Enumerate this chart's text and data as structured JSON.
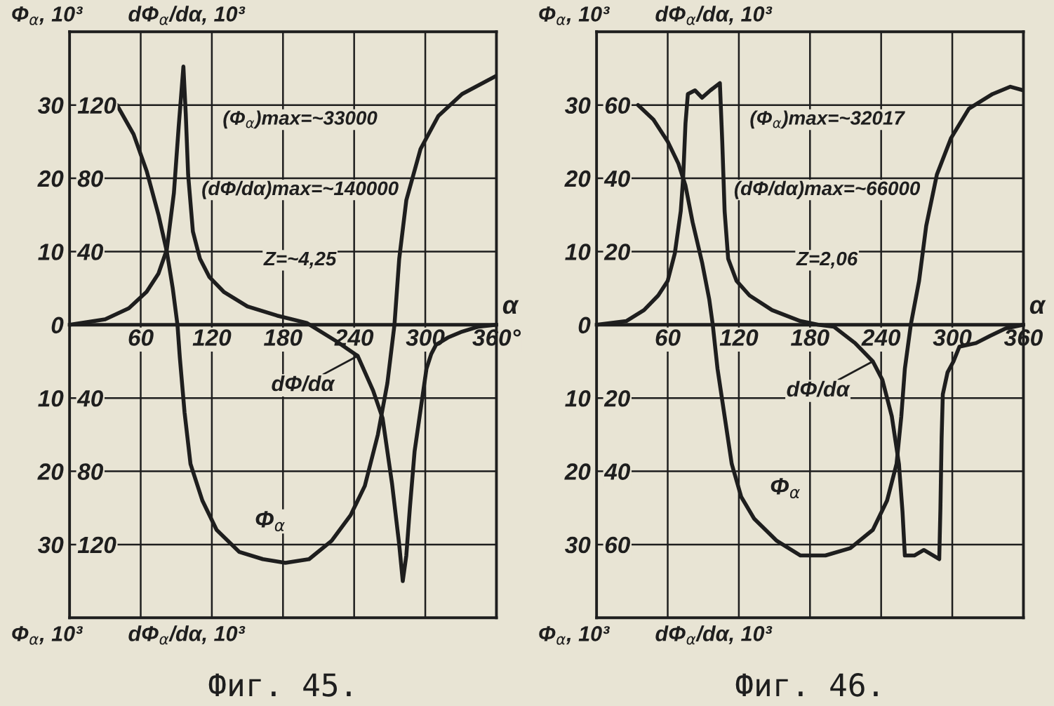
{
  "chart_data": [
    {
      "type": "line",
      "title": "Фиг. 45.",
      "xlabel": "α",
      "ylabel": "Φ$_{α}$, 10³",
      "y2label": "dΦ$_{α}$/dα, 10³",
      "annotations": [
        "(Φ$_{α}$)max=~33000",
        "(dΦ/dα)max=~140000",
        "Z=~4,25"
      ],
      "xlim": [
        0,
        360
      ],
      "xticks": [
        60,
        120,
        180,
        240,
        300,
        {
          "value": 360,
          "label": "360°"
        }
      ],
      "ylim": [
        -40,
        40
      ],
      "yticks": [
        {
          "value": -30,
          "label": "30"
        },
        {
          "value": -20,
          "label": "20"
        },
        {
          "value": -10,
          "label": "10"
        },
        0,
        10,
        20,
        30
      ],
      "y2lim": [
        -160,
        160
      ],
      "y2ticks": [
        {
          "value": -120,
          "label": "120"
        },
        {
          "value": -80,
          "label": "80"
        },
        {
          "value": -40,
          "label": "40"
        },
        40,
        80,
        120
      ],
      "grid": true,
      "series": [
        {
          "name": "Φ$_{α}$",
          "color": "#1e1e1e",
          "x": [
            40,
            54,
            65,
            75,
            82,
            87,
            91,
            93,
            97,
            102,
            112,
            124,
            143,
            163,
            182,
            202,
            221,
            237,
            249,
            260,
            268,
            274,
            278,
            284,
            296,
            311,
            331,
            360
          ],
          "values": [
            30,
            26,
            21,
            15,
            10,
            5,
            0,
            -4.5,
            -12,
            -19,
            -24,
            -28,
            -31,
            -32,
            -32.5,
            -32,
            -29.5,
            -26,
            -22,
            -15,
            -8,
            0,
            9,
            17,
            24,
            28.5,
            31.5,
            34
          ]
        },
        {
          "name": "dΦ/dα",
          "color": "#1e1e1e",
          "axis": "y2",
          "x": [
            0,
            30,
            50,
            65,
            75,
            82,
            88,
            92,
            96,
            98,
            100,
            104,
            110,
            118,
            130,
            150,
            175,
            200,
            225,
            243,
            256,
            264,
            272,
            278,
            281,
            284,
            287,
            291,
            297,
            301,
            305,
            309,
            319,
            330,
            345,
            360
          ],
          "values": [
            0,
            3,
            9,
            18,
            28,
            41,
            72,
            108,
            141,
            115,
            82,
            51,
            36,
            26,
            18,
            10,
            5,
            1,
            -9,
            -17,
            -36,
            -51,
            -87,
            -120,
            -140,
            -126,
            -100,
            -69,
            -42,
            -24,
            -16,
            -11,
            -7,
            -4,
            -1,
            0
          ]
        }
      ]
    },
    {
      "type": "line",
      "title": "Фиг. 46.",
      "xlabel": "α",
      "ylabel": "Φ$_{α}$, 10³",
      "y2label": "dΦ$_{α}$/dα, 10³",
      "annotations": [
        "(Φ$_{α}$)max=~32017",
        "(dΦ/dα)max=~66000",
        "Z=2,06"
      ],
      "xlim": [
        0,
        360
      ],
      "xticks": [
        60,
        120,
        180,
        240,
        300,
        360
      ],
      "ylim": [
        -40,
        40
      ],
      "yticks": [
        {
          "value": -30,
          "label": "30"
        },
        {
          "value": -20,
          "label": "20"
        },
        {
          "value": -10,
          "label": "10"
        },
        0,
        10,
        20,
        30
      ],
      "y2lim": [
        -80,
        80
      ],
      "y2ticks": [
        {
          "value": -60,
          "label": "60"
        },
        {
          "value": -40,
          "label": "40"
        },
        {
          "value": -20,
          "label": "20"
        },
        20,
        40,
        60
      ],
      "grid": true,
      "series": [
        {
          "name": "Φ$_{α}$",
          "color": "#1e1e1e",
          "x": [
            35,
            48,
            60,
            69,
            75,
            81,
            89,
            95,
            98,
            102,
            108,
            114,
            122,
            133,
            152,
            172,
            193,
            214,
            233,
            245,
            253,
            257,
            260,
            265,
            272,
            278,
            287,
            299,
            314,
            334,
            349,
            360
          ],
          "values": [
            30,
            28,
            25,
            22,
            19,
            14,
            8.5,
            3.5,
            0,
            -6,
            -12.5,
            -19,
            -23.5,
            -26.5,
            -29.5,
            -31.5,
            -31.5,
            -30.5,
            -28,
            -24,
            -19,
            -12.5,
            -6,
            0,
            6,
            13.5,
            20.5,
            25.5,
            29.5,
            31.5,
            32.5,
            32
          ]
        },
        {
          "name": "dΦ/dα",
          "color": "#1e1e1e",
          "axis": "y2",
          "x": [
            0,
            25,
            40,
            52,
            60,
            66,
            71,
            73,
            75,
            77,
            83,
            89,
            96,
            104,
            106,
            108,
            111,
            118,
            129,
            148,
            172,
            187,
            200,
            218,
            233,
            241,
            249,
            255,
            258,
            260,
            268,
            276,
            284,
            289,
            290,
            291,
            292,
            296,
            301,
            306,
            320,
            332,
            345,
            360
          ],
          "values": [
            0,
            1,
            4,
            8,
            12,
            19.5,
            31,
            40,
            55,
            63,
            64,
            62,
            64,
            66,
            50,
            31,
            18,
            12,
            8,
            4,
            1,
            0,
            -0.5,
            -5,
            -10,
            -15,
            -25,
            -38,
            -51,
            -63,
            -63,
            -61.5,
            -63,
            -64,
            -50,
            -31,
            -19,
            -13,
            -10,
            -6,
            -5,
            -3,
            -1,
            0
          ]
        }
      ]
    }
  ]
}
